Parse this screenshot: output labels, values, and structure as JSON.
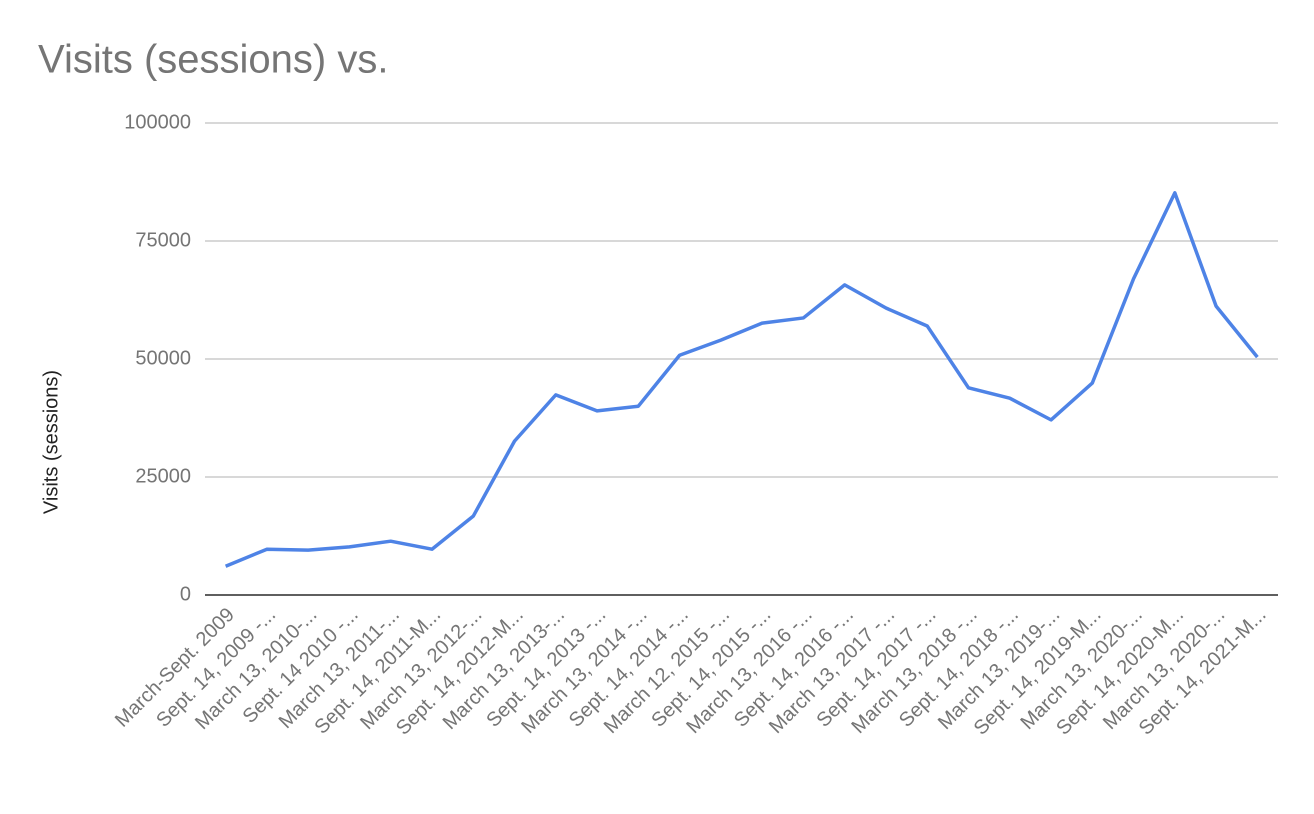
{
  "chart_data": {
    "type": "line",
    "title": "Visits (sessions) vs.",
    "y_label": "Visits (sessions)",
    "categories": [
      "March-Sept. 2009",
      "Sept. 14, 2009 -...",
      "March 13, 2010-...",
      "Sept. 14 2010 -...",
      "March 13, 2011-...",
      "Sept. 14, 2011-M...",
      "March 13, 2012-...",
      "Sept. 14, 2012-M...",
      "March 13, 2013-...",
      "Sept. 14, 2013 -...",
      "March 13, 2014 -...",
      "Sept. 14, 2014 -...",
      "March 12, 2015 -...",
      "Sept. 14, 2015 -...",
      "March 13, 2016 -...",
      "Sept. 14, 2016 -...",
      "March 13, 2017 -...",
      "Sept. 14, 2017 -...",
      "March 13, 2018 -...",
      "Sept. 14, 2018 -...",
      "March 13, 2019-...",
      "Sept. 14, 2019-M...",
      "March 13, 2020-...",
      "Sept. 14, 2020-M...",
      "March 13, 2020-...",
      "Sept. 14, 2021-M..."
    ],
    "series": [
      {
        "name": "Visits (sessions)",
        "color": "#4e83e6",
        "values": [
          6100,
          9700,
          9500,
          10200,
          11400,
          9700,
          16700,
          32600,
          42400,
          39000,
          40000,
          50800,
          54000,
          57600,
          58700,
          65700,
          60800,
          57000,
          43900,
          41700,
          37100,
          44900,
          67000,
          85200,
          61200,
          50400
        ]
      }
    ],
    "ylim": [
      0,
      100000
    ],
    "yticks": [
      0,
      25000,
      50000,
      75000,
      100000
    ],
    "grid": true
  }
}
